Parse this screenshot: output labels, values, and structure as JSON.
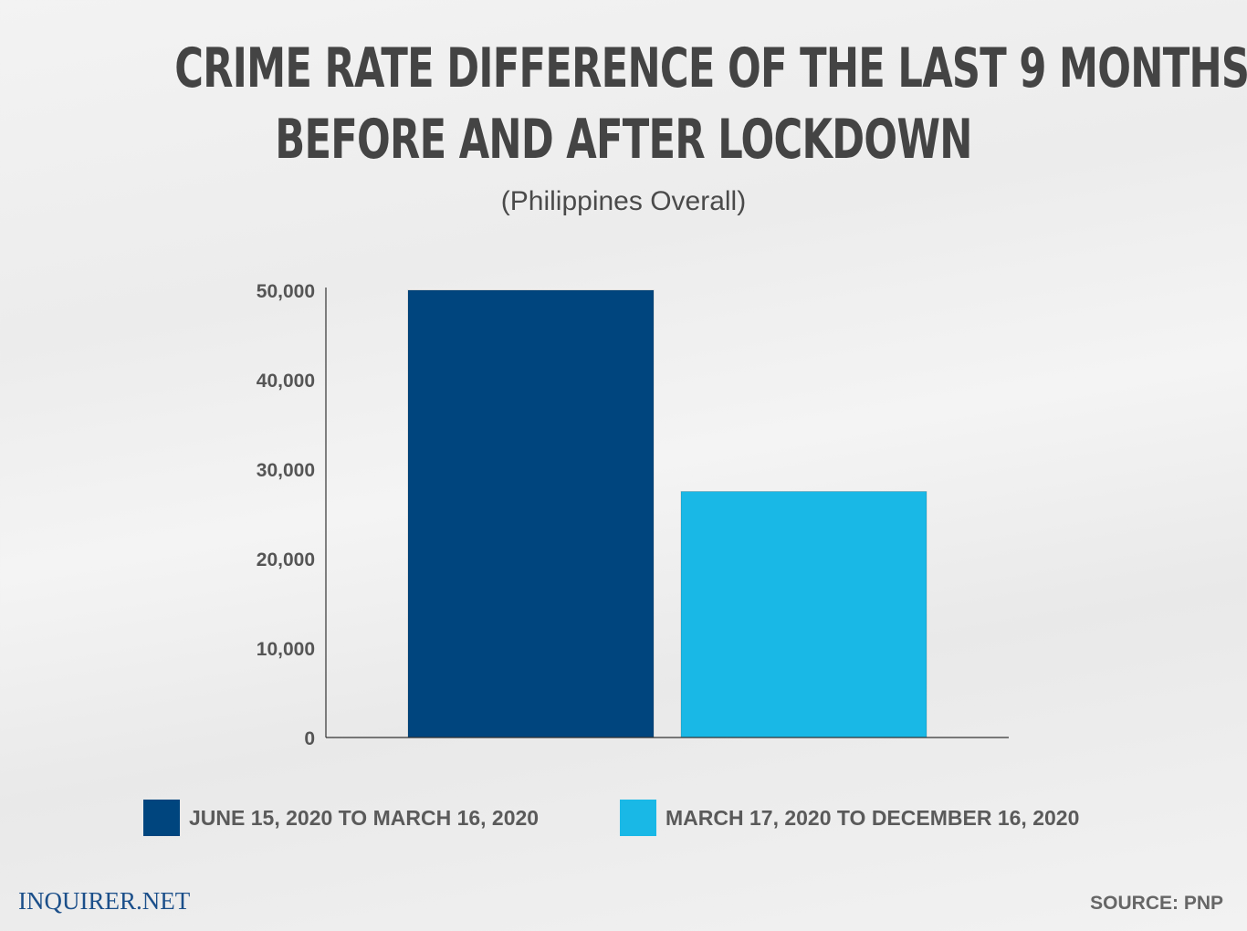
{
  "chart_data": {
    "type": "bar",
    "title": "CRIME RATE DIFFERENCE OF THE LAST 9 MONTHS BEFORE AND AFTER LOCKDOWN",
    "title_lines": [
      "CRIME RATE DIFFERENCE OF THE LAST 9 MONTHS",
      "BEFORE AND AFTER LOCKDOWN"
    ],
    "subtitle": "(Philippines Overall)",
    "xlabel": "",
    "ylabel": "",
    "ylim": [
      0,
      50000
    ],
    "yticks": [
      0,
      10000,
      20000,
      30000,
      40000,
      50000
    ],
    "ytick_labels": [
      "0",
      "10,000",
      "20,000",
      "30,000",
      "40,000",
      "50,000"
    ],
    "grid": false,
    "legend_placement": "bottom",
    "series": [
      {
        "name": "JUNE 15, 2020 TO MARCH 16, 2020",
        "values": [
          50000
        ],
        "color": "#00457e"
      },
      {
        "name": "MARCH 17, 2020 TO DECEMBER 16, 2020",
        "values": [
          27500
        ],
        "color": "#19b8e6"
      }
    ]
  },
  "footer": {
    "logo": "INQUIRER.NET",
    "source": "SOURCE: PNP"
  }
}
